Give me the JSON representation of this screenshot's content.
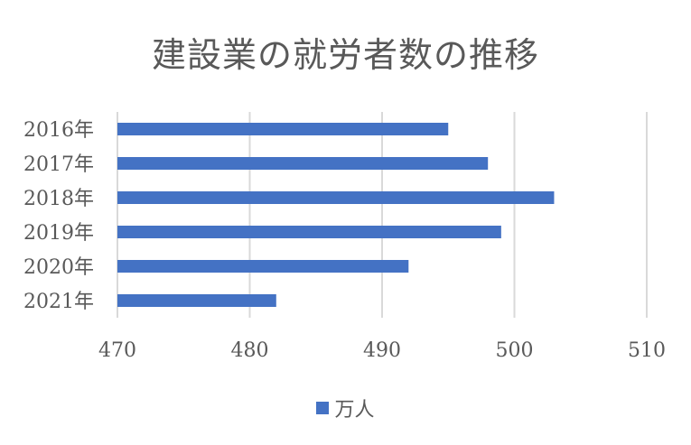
{
  "chart_data": {
    "type": "bar",
    "orientation": "horizontal",
    "title": "建設業の就労者数の推移",
    "categories": [
      "2016年",
      "2017年",
      "2018年",
      "2019年",
      "2020年",
      "2021年"
    ],
    "series": [
      {
        "name": "万人",
        "values": [
          495,
          498,
          503,
          499,
          492,
          482
        ],
        "color": "#4472C4"
      }
    ],
    "xlim": [
      470,
      510
    ],
    "xticks": [
      "470",
      "480",
      "490",
      "500",
      "510"
    ],
    "grid": true,
    "legend": "bottom"
  }
}
